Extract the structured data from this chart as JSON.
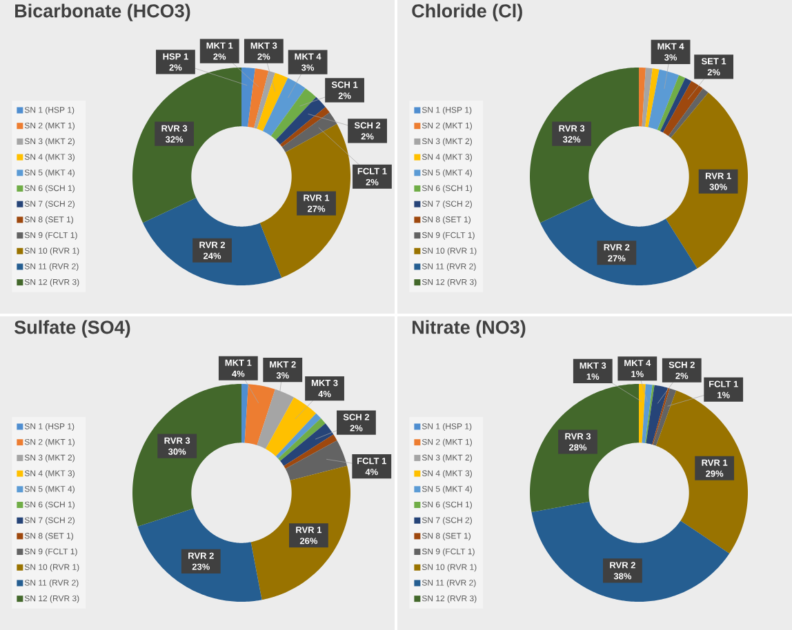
{
  "chart_data": [
    {
      "type": "donut",
      "title": "Bicarbonate (HCO3)",
      "categories": [
        "SN 1 (HSP 1)",
        "SN 2 (MKT 1)",
        "SN 3 (MKT 2)",
        "SN 4 (MKT 3)",
        "SN 5 (MKT 4)",
        "SN 6 (SCH 1)",
        "SN 7 (SCH 2)",
        "SN 8 (SET 1)",
        "SN 9 (FCLT 1)",
        "SN 10 (RVR 1)",
        "SN 11 (RVR 2)",
        "SN 12 (RVR 3)"
      ],
      "values": [
        2,
        2,
        1,
        2,
        3,
        2,
        2,
        1,
        2,
        27,
        24,
        32
      ],
      "colors": [
        "#4F8ED0",
        "#ED7D31",
        "#A5A5A5",
        "#FFC000",
        "#5B9BD5",
        "#70AD47",
        "#264478",
        "#9E480E",
        "#636363",
        "#997300",
        "#255E91",
        "#43682B"
      ],
      "value_labels": [
        "HSP 1 2%",
        "MKT 1 2%",
        null,
        "MKT 3 2%",
        "MKT 4 3%",
        "SCH 1 2%",
        "SCH 2 2%",
        null,
        "FCLT 1 2%",
        "RVR 1 27%",
        "RVR 2 24%",
        "RVR 3 32%"
      ],
      "legend": "left"
    },
    {
      "type": "donut",
      "title": "Chloride (Cl)",
      "categories": [
        "SN 1 (HSP 1)",
        "SN 2 (MKT 1)",
        "SN 3 (MKT 2)",
        "SN 4 (MKT 3)",
        "SN 5 (MKT 4)",
        "SN 6 (SCH 1)",
        "SN 7 (SCH 2)",
        "SN 8 (SET 1)",
        "SN 9 (FCLT 1)",
        "SN 10 (RVR 1)",
        "SN 11 (RVR 2)",
        "SN 12 (RVR 3)"
      ],
      "values": [
        0,
        1,
        1,
        1,
        3,
        1,
        1,
        2,
        1,
        30,
        27,
        32
      ],
      "colors": [
        "#4F8ED0",
        "#ED7D31",
        "#A5A5A5",
        "#FFC000",
        "#5B9BD5",
        "#70AD47",
        "#264478",
        "#9E480E",
        "#636363",
        "#997300",
        "#255E91",
        "#43682B"
      ],
      "value_labels": [
        null,
        null,
        null,
        null,
        "MKT 4 3%",
        null,
        null,
        "SET 1 2%",
        null,
        "RVR 1 30%",
        "RVR 2 27%",
        "RVR 3 32%"
      ],
      "legend": "left"
    },
    {
      "type": "donut",
      "title": "Sulfate (SO4)",
      "categories": [
        "SN 1 (HSP 1)",
        "SN 2 (MKT 1)",
        "SN 3 (MKT 2)",
        "SN 4 (MKT 3)",
        "SN 5 (MKT 4)",
        "SN 6 (SCH 1)",
        "SN 7 (SCH 2)",
        "SN 8 (SET 1)",
        "SN 9 (FCLT 1)",
        "SN 10 (RVR 1)",
        "SN 11 (RVR 2)",
        "SN 12 (RVR 3)"
      ],
      "values": [
        1,
        4,
        3,
        4,
        1,
        1,
        2,
        1,
        4,
        26,
        23,
        30
      ],
      "colors": [
        "#4F8ED0",
        "#ED7D31",
        "#A5A5A5",
        "#FFC000",
        "#5B9BD5",
        "#70AD47",
        "#264478",
        "#9E480E",
        "#636363",
        "#997300",
        "#255E91",
        "#43682B"
      ],
      "value_labels": [
        null,
        "MKT 1 4%",
        "MKT 2 3%",
        "MKT 3 4%",
        null,
        null,
        "SCH 2 2%",
        null,
        "FCLT 1 4%",
        "RVR 1 26%",
        "RVR 2 23%",
        "RVR 3 30%"
      ],
      "legend": "left"
    },
    {
      "type": "donut",
      "title": "Nitrate (NO3)",
      "categories": [
        "SN 1 (HSP 1)",
        "SN 2 (MKT 1)",
        "SN 3 (MKT 2)",
        "SN 4 (MKT 3)",
        "SN 5 (MKT 4)",
        "SN 6 (SCH 1)",
        "SN 7 (SCH 2)",
        "SN 8 (SET 1)",
        "SN 9 (FCLT 1)",
        "SN 10 (RVR 1)",
        "SN 11 (RVR 2)",
        "SN 12 (RVR 3)"
      ],
      "values": [
        0,
        0,
        0,
        1,
        1,
        0.3,
        2,
        0.3,
        1,
        29,
        38,
        28
      ],
      "colors": [
        "#4F8ED0",
        "#ED7D31",
        "#A5A5A5",
        "#FFC000",
        "#5B9BD5",
        "#70AD47",
        "#264478",
        "#9E480E",
        "#636363",
        "#997300",
        "#255E91",
        "#43682B"
      ],
      "value_labels": [
        null,
        null,
        null,
        "MKT 3 1%",
        "MKT 4 1%",
        null,
        "SCH 2 2%",
        null,
        "FCLT 1 1%",
        "RVR 1 29%",
        "RVR 2 38%",
        "RVR 3 28%"
      ],
      "legend": "left"
    }
  ]
}
